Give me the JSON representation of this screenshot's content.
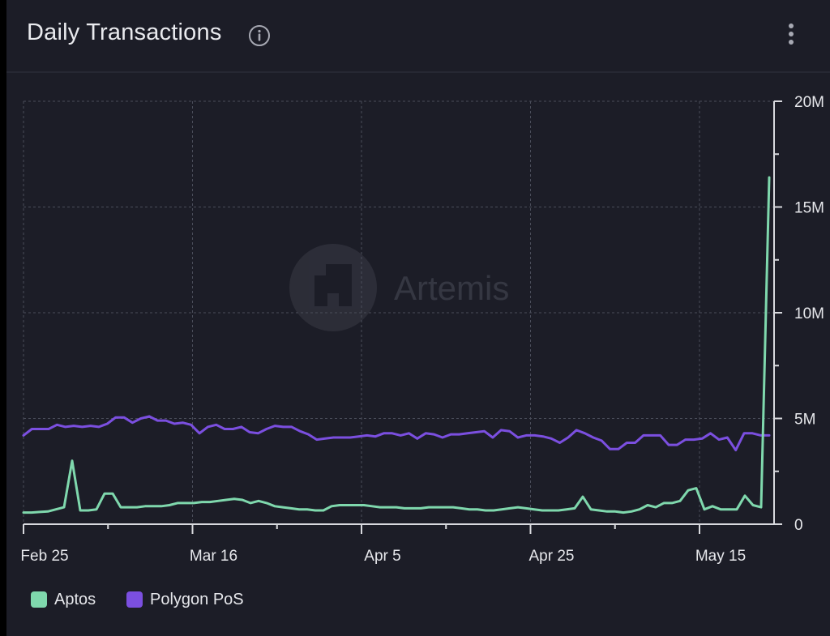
{
  "title": "Daily Transactions",
  "icons": {
    "info": "info-icon",
    "menu": "vertical-dots-menu-icon",
    "watermark": "artemis-logo-icon"
  },
  "watermark": {
    "text": "Artemis"
  },
  "colors": {
    "background": "#1c1d27",
    "grid": "#4a4d5a",
    "text": "#e6e7eb",
    "aptos": "#7fd8ad",
    "polygon": "#7b4fe0"
  },
  "legend": [
    {
      "label": "Aptos",
      "color": "#7fd8ad"
    },
    {
      "label": "Polygon PoS",
      "color": "#7b4fe0"
    }
  ],
  "chart_data": {
    "type": "line",
    "title": "Daily Transactions",
    "x_start": "Feb 25",
    "x_ticks": [
      "Feb 25",
      "Mar 16",
      "Apr 5",
      "Apr 25",
      "May 15"
    ],
    "y_ticks": [
      "0",
      "5M",
      "10M",
      "15M",
      "20M"
    ],
    "ylim": [
      0,
      20000000
    ],
    "y_axis_position": "right",
    "grid": true,
    "legend_position": "bottom-left",
    "series": [
      {
        "name": "Aptos",
        "color": "#7fd8ad",
        "values": [
          0.55,
          0.55,
          0.58,
          0.6,
          0.7,
          0.8,
          3.0,
          0.65,
          0.65,
          0.7,
          1.45,
          1.45,
          0.8,
          0.8,
          0.8,
          0.85,
          0.85,
          0.85,
          0.9,
          1.0,
          1.0,
          1.0,
          1.05,
          1.05,
          1.1,
          1.15,
          1.2,
          1.15,
          1.0,
          1.1,
          1.0,
          0.85,
          0.8,
          0.75,
          0.7,
          0.7,
          0.65,
          0.65,
          0.85,
          0.9,
          0.9,
          0.9,
          0.9,
          0.85,
          0.8,
          0.8,
          0.8,
          0.75,
          0.75,
          0.75,
          0.8,
          0.8,
          0.8,
          0.8,
          0.75,
          0.7,
          0.7,
          0.65,
          0.65,
          0.7,
          0.75,
          0.8,
          0.75,
          0.7,
          0.65,
          0.65,
          0.65,
          0.7,
          0.75,
          1.3,
          0.7,
          0.65,
          0.6,
          0.6,
          0.55,
          0.6,
          0.7,
          0.9,
          0.8,
          1.0,
          1.0,
          1.1,
          1.6,
          1.7,
          0.7,
          0.85,
          0.7,
          0.7,
          0.7,
          1.35,
          0.9,
          0.8,
          16.4
        ]
      },
      {
        "name": "Polygon PoS",
        "color": "#7b4fe0",
        "values": [
          4.2,
          4.5,
          4.5,
          4.5,
          4.7,
          4.6,
          4.65,
          4.6,
          4.65,
          4.6,
          4.75,
          5.05,
          5.05,
          4.8,
          5.0,
          5.1,
          4.9,
          4.9,
          4.75,
          4.8,
          4.7,
          4.3,
          4.6,
          4.7,
          4.5,
          4.5,
          4.6,
          4.35,
          4.3,
          4.5,
          4.65,
          4.6,
          4.6,
          4.4,
          4.25,
          4.0,
          4.05,
          4.1,
          4.1,
          4.1,
          4.15,
          4.2,
          4.15,
          4.3,
          4.3,
          4.2,
          4.3,
          4.05,
          4.3,
          4.25,
          4.1,
          4.25,
          4.25,
          4.3,
          4.35,
          4.4,
          4.1,
          4.45,
          4.4,
          4.1,
          4.2,
          4.2,
          4.15,
          4.05,
          3.85,
          4.1,
          4.45,
          4.3,
          4.1,
          3.95,
          3.55,
          3.55,
          3.85,
          3.85,
          4.2,
          4.2,
          4.2,
          3.75,
          3.75,
          4.0,
          4.0,
          4.05,
          4.3,
          4.0,
          4.1,
          3.5,
          4.3,
          4.3,
          4.2,
          4.2
        ]
      }
    ]
  }
}
